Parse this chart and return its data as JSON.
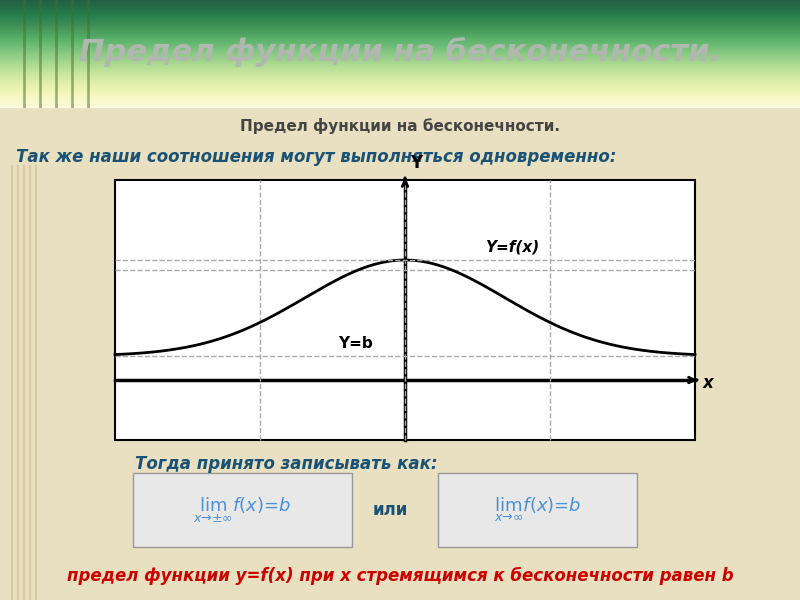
{
  "title": "Предел функции на бесконечности.",
  "subtitle": "Предел функции на бесконечности.",
  "line1": "Так же наши соотношения могут выполняться одновременно:",
  "line2": "Тогда принято записывать как:",
  "line3": "предел функции y=f(x) при x стремящимся к бесконечности равен b",
  "bg_top_color": "#6b8e3e",
  "bg_bottom_color": "#e8e0c0",
  "title_color": "#c0c0c0",
  "line1_color": "#1a5276",
  "line2_color": "#1a5276",
  "line3_color": "#cc0000",
  "formula_box_color": "#e8e8e8",
  "formula_text_color": "#4a90d9",
  "graph_bg": "#ffffff",
  "graph_border": "#000000",
  "curve_color": "#000000",
  "axis_label_y": "Y",
  "axis_label_x": "x",
  "curve_label": "Y=f(x)",
  "yb_label": "Y=b",
  "dashed_color": "#aaaaaa",
  "formula1": "$\\lim_{x\\to\\pm\\infty} f(x) = b$",
  "formula2": "$\\lim_{x\\to\\infty} f(x) = b$",
  "ili_text": "или"
}
